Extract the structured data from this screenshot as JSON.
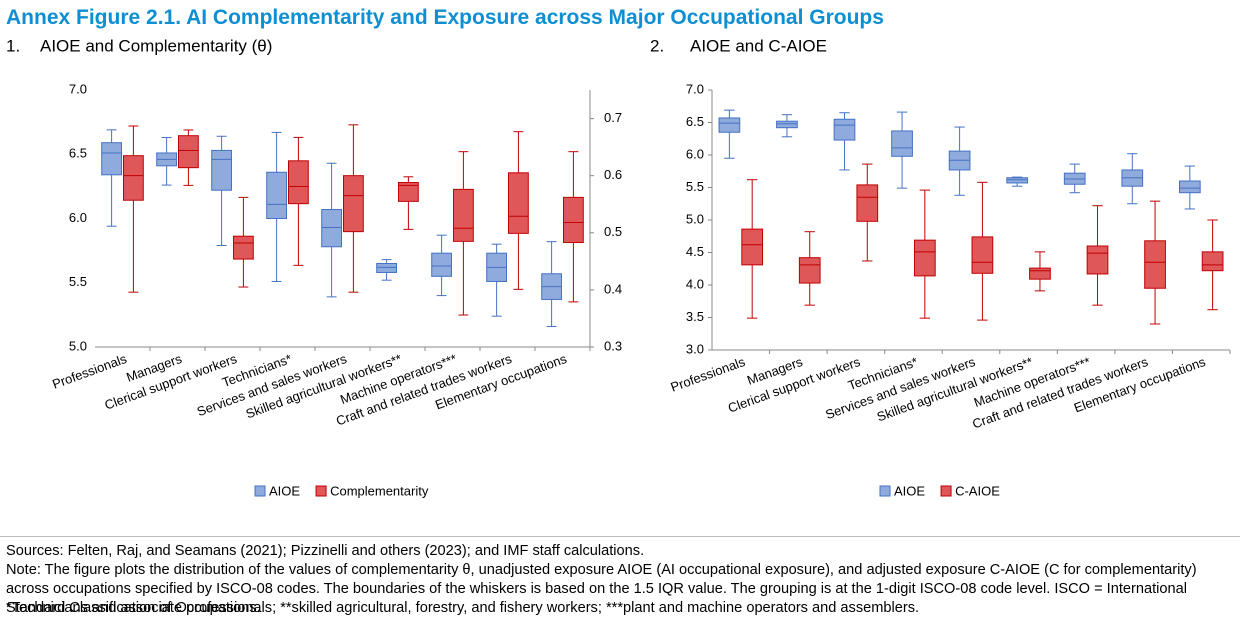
{
  "figure_title": "Annex Figure 2.1. AI Complementarity and Exposure across Major Occupational Groups",
  "chart_data": [
    {
      "type": "box",
      "panel": "1.",
      "title": "AIOE and Complementarity  (θ)",
      "categories": [
        "Professionals",
        "Managers",
        "Clerical support workers",
        "Technicians*",
        "Services and sales workers",
        "Skilled agricultural workers**",
        "Machine operators***",
        "Craft and related trades workers",
        "Elementary occupations"
      ],
      "ylim": [
        5.0,
        7.0
      ],
      "yticks": [
        {
          "value": 5,
          "label": "5.0"
        },
        5.5,
        {
          "value": 6,
          "label": "6.0"
        },
        6.5,
        {
          "value": 7,
          "label": "7.0"
        }
      ],
      "y2lim": [
        0.3,
        0.75
      ],
      "y2ticks": [
        0.3,
        0.4,
        0.5,
        0.6,
        0.7
      ],
      "series": [
        {
          "name": "AIOE",
          "color": "#8faadc",
          "values": [
            {
              "min": 5.94,
              "q1": 6.34,
              "median": 6.51,
              "q3": 6.59,
              "max": 6.69
            },
            {
              "min": 6.26,
              "q1": 6.41,
              "median": 6.46,
              "q3": 6.51,
              "max": 6.63
            },
            {
              "min": 5.79,
              "q1": 6.22,
              "median": 6.46,
              "q3": 6.53,
              "max": 6.64
            },
            {
              "min": 5.51,
              "q1": 6.0,
              "median": 6.11,
              "q3": 6.36,
              "max": 6.67
            },
            {
              "min": 5.39,
              "q1": 5.78,
              "median": 5.93,
              "q3": 6.07,
              "max": 6.43
            },
            {
              "min": 5.52,
              "q1": 5.58,
              "median": 5.62,
              "q3": 5.65,
              "max": 5.68
            },
            {
              "min": 5.4,
              "q1": 5.55,
              "median": 5.63,
              "q3": 5.73,
              "max": 5.87
            },
            {
              "min": 5.24,
              "q1": 5.51,
              "median": 5.62,
              "q3": 5.73,
              "max": 5.8
            },
            {
              "min": 5.16,
              "q1": 5.37,
              "median": 5.47,
              "q3": 5.57,
              "max": 5.82
            }
          ]
        },
        {
          "name": "Complementarity",
          "color": "#e0575a",
          "axis": "y2",
          "values": [
            {
              "min": 0.396,
              "q1": 0.557,
              "median": 0.6,
              "q3": 0.635,
              "max": 0.687
            },
            {
              "min": 0.583,
              "q1": 0.614,
              "median": 0.644,
              "q3": 0.67,
              "max": 0.68
            },
            {
              "min": 0.405,
              "q1": 0.454,
              "median": 0.482,
              "q3": 0.494,
              "max": 0.562
            },
            {
              "min": 0.443,
              "q1": 0.551,
              "median": 0.581,
              "q3": 0.626,
              "max": 0.667
            },
            {
              "min": 0.396,
              "q1": 0.502,
              "median": 0.565,
              "q3": 0.6,
              "max": 0.689
            },
            {
              "min": 0.506,
              "q1": 0.555,
              "median": 0.583,
              "q3": 0.588,
              "max": 0.598
            },
            {
              "min": 0.356,
              "q1": 0.485,
              "median": 0.508,
              "q3": 0.576,
              "max": 0.642
            },
            {
              "min": 0.401,
              "q1": 0.499,
              "median": 0.529,
              "q3": 0.605,
              "max": 0.677
            },
            {
              "min": 0.379,
              "q1": 0.483,
              "median": 0.518,
              "q3": 0.562,
              "max": 0.642
            }
          ]
        }
      ]
    },
    {
      "type": "box",
      "panel": "2.",
      "title": "AIOE and C-AIOE",
      "categories": [
        "Professionals",
        "Managers",
        "Clerical support workers",
        "Technicians*",
        "Services and sales workers",
        "Skilled agricultural workers**",
        "Machine operators***",
        "Craft and related trades workers",
        "Elementary occupations"
      ],
      "ylim": [
        3.0,
        7.0
      ],
      "yticks": [
        {
          "value": 3,
          "label": "3.0"
        },
        3.5,
        {
          "value": 4,
          "label": "4.0"
        },
        4.5,
        {
          "value": 5,
          "label": "5.0"
        },
        5.5,
        {
          "value": 6,
          "label": "6.0"
        },
        6.5,
        {
          "value": 7,
          "label": "7.0"
        }
      ],
      "series": [
        {
          "name": "AIOE",
          "color": "#8faadc",
          "values": [
            {
              "min": 5.95,
              "q1": 6.35,
              "median": 6.49,
              "q3": 6.57,
              "max": 6.69
            },
            {
              "min": 6.28,
              "q1": 6.42,
              "median": 6.48,
              "q3": 6.52,
              "max": 6.62
            },
            {
              "min": 5.77,
              "q1": 6.23,
              "median": 6.46,
              "q3": 6.55,
              "max": 6.65
            },
            {
              "min": 5.49,
              "q1": 5.98,
              "median": 6.11,
              "q3": 6.37,
              "max": 6.66
            },
            {
              "min": 5.38,
              "q1": 5.77,
              "median": 5.92,
              "q3": 6.06,
              "max": 6.43
            },
            {
              "min": 5.52,
              "q1": 5.57,
              "median": 5.62,
              "q3": 5.65,
              "max": 5.66
            },
            {
              "min": 5.42,
              "q1": 5.55,
              "median": 5.63,
              "q3": 5.72,
              "max": 5.86
            },
            {
              "min": 5.25,
              "q1": 5.52,
              "median": 5.65,
              "q3": 5.77,
              "max": 6.02
            },
            {
              "min": 5.17,
              "q1": 5.42,
              "median": 5.49,
              "q3": 5.6,
              "max": 5.83
            }
          ]
        },
        {
          "name": "C-AIOE",
          "color": "#e0575a",
          "values": [
            {
              "min": 3.49,
              "q1": 4.31,
              "median": 4.62,
              "q3": 4.86,
              "max": 5.62
            },
            {
              "min": 3.69,
              "q1": 4.03,
              "median": 4.31,
              "q3": 4.42,
              "max": 4.82
            },
            {
              "min": 4.37,
              "q1": 4.98,
              "median": 5.35,
              "q3": 5.54,
              "max": 5.86
            },
            {
              "min": 3.49,
              "q1": 4.14,
              "median": 4.51,
              "q3": 4.69,
              "max": 5.46
            },
            {
              "min": 3.46,
              "q1": 4.18,
              "median": 4.35,
              "q3": 4.74,
              "max": 5.58
            },
            {
              "min": 3.91,
              "q1": 4.09,
              "median": 4.22,
              "q3": 4.26,
              "max": 4.51
            },
            {
              "min": 3.69,
              "q1": 4.17,
              "median": 4.49,
              "q3": 4.6,
              "max": 5.22
            },
            {
              "min": 3.4,
              "q1": 3.95,
              "median": 4.35,
              "q3": 4.68,
              "max": 5.29
            },
            {
              "min": 3.62,
              "q1": 4.22,
              "median": 4.31,
              "q3": 4.51,
              "max": 5.0
            }
          ]
        }
      ]
    }
  ],
  "sources": "Sources: Felten, Raj, and Seamans (2021); Pizzinelli and others (2023); and IMF staff calculations.",
  "note": "Note: The figure plots the distribution of the values of complementarity θ, unadjusted exposure AIOE (AI occupational exposure), and adjusted exposure C-AIOE (C for complementarity) across occupations specified by ISCO-08 codes. The boundaries of the whiskers is based on the 1.5 IQR value. The grouping is at the 1-digit ISCO-08 code level. ISCO = International Standard Classification of Occupations.",
  "footnote": "*Technicians and associate professionals; **skilled agricultural, forestry, and fishery workers; ***plant and machine operators and assemblers."
}
